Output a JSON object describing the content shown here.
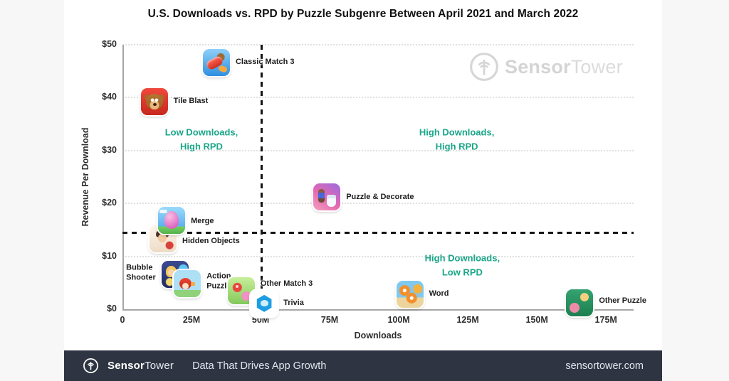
{
  "page": {
    "background": "#f7f7f8",
    "card_background": "#ffffff"
  },
  "chart_data": {
    "type": "scatter",
    "title": "U.S. Downloads vs. RPD by Puzzle Subgenre Between April 2021 and March 2022",
    "xlabel": "Downloads",
    "ylabel": "Revenue Per Download",
    "x_unit": "downloads (millions)",
    "y_unit": "USD revenue per download",
    "xlim_m": [
      0,
      185
    ],
    "ylim_usd": [
      0,
      50
    ],
    "grid": "horizontal dotted gridlines every $10",
    "legend_position": "none",
    "accent_color": "#1aa689",
    "x_ticks": [
      {
        "value_m": 0,
        "label": "0"
      },
      {
        "value_m": 25,
        "label": "25M"
      },
      {
        "value_m": 50,
        "label": "50M"
      },
      {
        "value_m": 75,
        "label": "75M"
      },
      {
        "value_m": 100,
        "label": "100M"
      },
      {
        "value_m": 125,
        "label": "125M"
      },
      {
        "value_m": 150,
        "label": "150M"
      },
      {
        "value_m": 175,
        "label": "175M"
      }
    ],
    "y_ticks": [
      {
        "value": 0,
        "label": "$0"
      },
      {
        "value": 10,
        "label": "$10"
      },
      {
        "value": 20,
        "label": "$20"
      },
      {
        "value": 30,
        "label": "$30"
      },
      {
        "value": 40,
        "label": "$40"
      },
      {
        "value": 50,
        "label": "$50"
      }
    ],
    "reference_lines": {
      "vertical_at_m": 50.5,
      "horizontal_at_usd": 14.4,
      "style": "black dashed"
    },
    "quadrant_labels": [
      {
        "text": "Low Downloads,\nHigh RPD",
        "x_m": 28.6,
        "rpd_usd": 32.1
      },
      {
        "text": "High Downloads,\nHigh RPD",
        "x_m": 121,
        "rpd_usd": 32.1
      },
      {
        "text": "High Downloads,\nLow RPD",
        "x_m": 123,
        "rpd_usd": 8.3
      }
    ],
    "points": [
      {
        "name": "hidden-objects",
        "label": "Hidden Objects",
        "downloads_m": 14.7,
        "rpd_usd": 13.3,
        "label_side": "right",
        "label_dy": 4
      },
      {
        "name": "merge",
        "label": "Merge",
        "downloads_m": 17.8,
        "rpd_usd": 16.8,
        "label_side": "right",
        "label_dy": 2
      },
      {
        "name": "bubble-shooter",
        "label": "Bubble\nShooter",
        "downloads_m": 19,
        "rpd_usd": 6.6,
        "label_side": "left",
        "label_dy": -2
      },
      {
        "name": "action-puzzle",
        "label": "Action\nPuzzle",
        "downloads_m": 23.5,
        "rpd_usd": 4.8,
        "label_side": "right",
        "label_dy": -3
      },
      {
        "name": "other-match3",
        "label": "Other Match 3",
        "downloads_m": 43,
        "rpd_usd": 3.5,
        "label_side": "right",
        "label_dy": -9
      },
      {
        "name": "trivia",
        "label": "Trivia",
        "downloads_m": 51.3,
        "rpd_usd": 1.1,
        "label_side": "right",
        "label_dy": 0
      },
      {
        "name": "classic-match3",
        "label": "Classic Match 3",
        "downloads_m": 34,
        "rpd_usd": 46.6,
        "label_side": "right",
        "label_dy": 0
      },
      {
        "name": "tile-blast",
        "label": "Tile Blast",
        "downloads_m": 11.5,
        "rpd_usd": 39.2,
        "label_side": "right",
        "label_dy": 0
      },
      {
        "name": "puzzle-decorate",
        "label": "Puzzle & Decorate",
        "downloads_m": 74,
        "rpd_usd": 21.2,
        "label_side": "right",
        "label_dy": 1
      },
      {
        "name": "word",
        "label": "Word",
        "downloads_m": 104,
        "rpd_usd": 2.8,
        "label_side": "right",
        "label_dy": 0
      },
      {
        "name": "other-puzzle",
        "label": "Other Puzzle",
        "downloads_m": 165.5,
        "rpd_usd": 1.2,
        "label_side": "right",
        "label_dy": -2
      }
    ]
  },
  "watermark": {
    "brand_bold": "Sensor",
    "brand_light": "Tower"
  },
  "footer": {
    "background": "#2e3442",
    "brand_bold": "Sensor",
    "brand_light": "Tower",
    "tagline": "Data That Drives App Growth",
    "website": "sensortower.com"
  }
}
